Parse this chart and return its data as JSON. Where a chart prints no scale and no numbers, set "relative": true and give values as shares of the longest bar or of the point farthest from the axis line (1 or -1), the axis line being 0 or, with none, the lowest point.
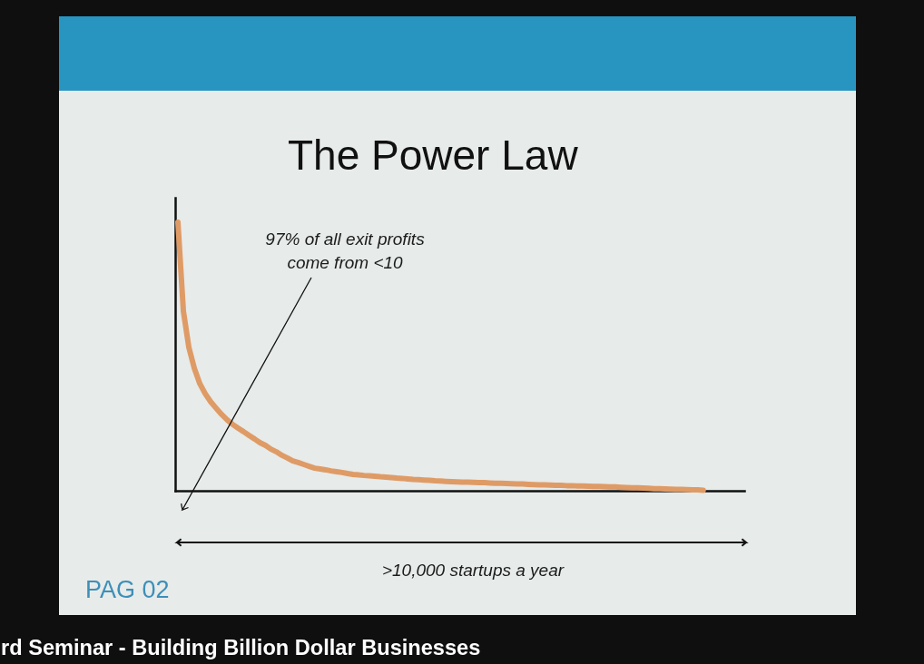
{
  "chart_data": {
    "type": "line",
    "title": "The Power Law",
    "relative": true,
    "categories": [
      null,
      null,
      null,
      null,
      null,
      null,
      null,
      null,
      null,
      null,
      null,
      null,
      null,
      null,
      null,
      null,
      null,
      null,
      null,
      null,
      null,
      null,
      null,
      null,
      null,
      null,
      null,
      null,
      null,
      null,
      null,
      null,
      null,
      null,
      null,
      null,
      null,
      null,
      null,
      null,
      null,
      null,
      null,
      null,
      null,
      null,
      null,
      null,
      null,
      null,
      null,
      null,
      null,
      null,
      null,
      null,
      null,
      null,
      null,
      null,
      null,
      null,
      null,
      null,
      null,
      null,
      null,
      null,
      null,
      null,
      null,
      null,
      null,
      null,
      null,
      null,
      null,
      null,
      null,
      null,
      null,
      null,
      null,
      null,
      null,
      null,
      null,
      null,
      null,
      null,
      null,
      null,
      null,
      null,
      null,
      null,
      null,
      null,
      null,
      null,
      null,
      null,
      null,
      null
    ],
    "values": [
      1,
      0.669,
      0.534,
      0.456,
      0.399,
      0.361,
      0.331,
      0.307,
      0.284,
      0.264,
      0.247,
      0.233,
      0.22,
      0.206,
      0.193,
      0.179,
      0.169,
      0.155,
      0.145,
      0.132,
      0.122,
      0.111,
      0.105,
      0.098,
      0.091,
      0.084,
      0.081,
      0.078,
      0.074,
      0.071,
      0.068,
      0.064,
      0.061,
      0.059,
      0.057,
      0.056,
      0.054,
      0.052,
      0.051,
      0.049,
      0.047,
      0.046,
      0.044,
      0.042,
      0.041,
      0.04,
      0.039,
      0.037,
      0.036,
      0.035,
      0.034,
      0.033,
      0.032,
      0.032,
      0.031,
      0.03,
      0.03,
      0.029,
      0.028,
      0.028,
      0.027,
      0.026,
      0.025,
      0.025,
      0.024,
      0.023,
      0.022,
      0.022,
      0.021,
      0.02,
      0.02,
      0.019,
      0.019,
      0.018,
      0.018,
      0.017,
      0.016,
      0.016,
      0.015,
      0.014,
      0.014,
      0.013,
      0.012,
      0.011,
      0.011,
      0.01,
      0.009,
      0.008,
      0.008,
      0.007,
      0.006,
      0.005,
      0.005,
      0.004,
      0.003,
      0.003,
      0.002,
      null,
      null,
      null,
      null,
      null,
      null,
      null
    ],
    "color": "#df9b66",
    "annotations": [
      "97% of all exit profits\ncome from <10",
      ">10,000 startups a year",
      "PAG 02",
      "rd Seminar - Building Billion Dollar Businesses"
    ]
  }
}
